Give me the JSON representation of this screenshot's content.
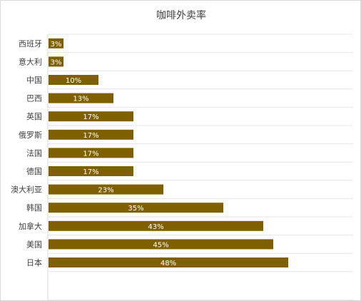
{
  "chart_data": {
    "type": "bar",
    "orientation": "horizontal",
    "title": "咖啡外卖率",
    "categories": [
      "西班牙",
      "意大利",
      "中国",
      "巴西",
      "英国",
      "俄罗斯",
      "法国",
      "德国",
      "澳大利亚",
      "韩国",
      "加拿大",
      "美国",
      "日本"
    ],
    "values": [
      3,
      3,
      10,
      13,
      17,
      17,
      17,
      17,
      23,
      35,
      43,
      45,
      48
    ],
    "data_labels": [
      "3%",
      "3%",
      "10%",
      "13%",
      "17%",
      "17%",
      "17%",
      "17%",
      "23%",
      "35%",
      "43%",
      "45%",
      "48%"
    ],
    "xlim": [
      0,
      50
    ],
    "unit": "%",
    "grid": "horizontal",
    "legend": "none",
    "bar_color": "#7f6000",
    "grid_color": "#e6e6e6",
    "axis_color": "#d9d9d9"
  }
}
